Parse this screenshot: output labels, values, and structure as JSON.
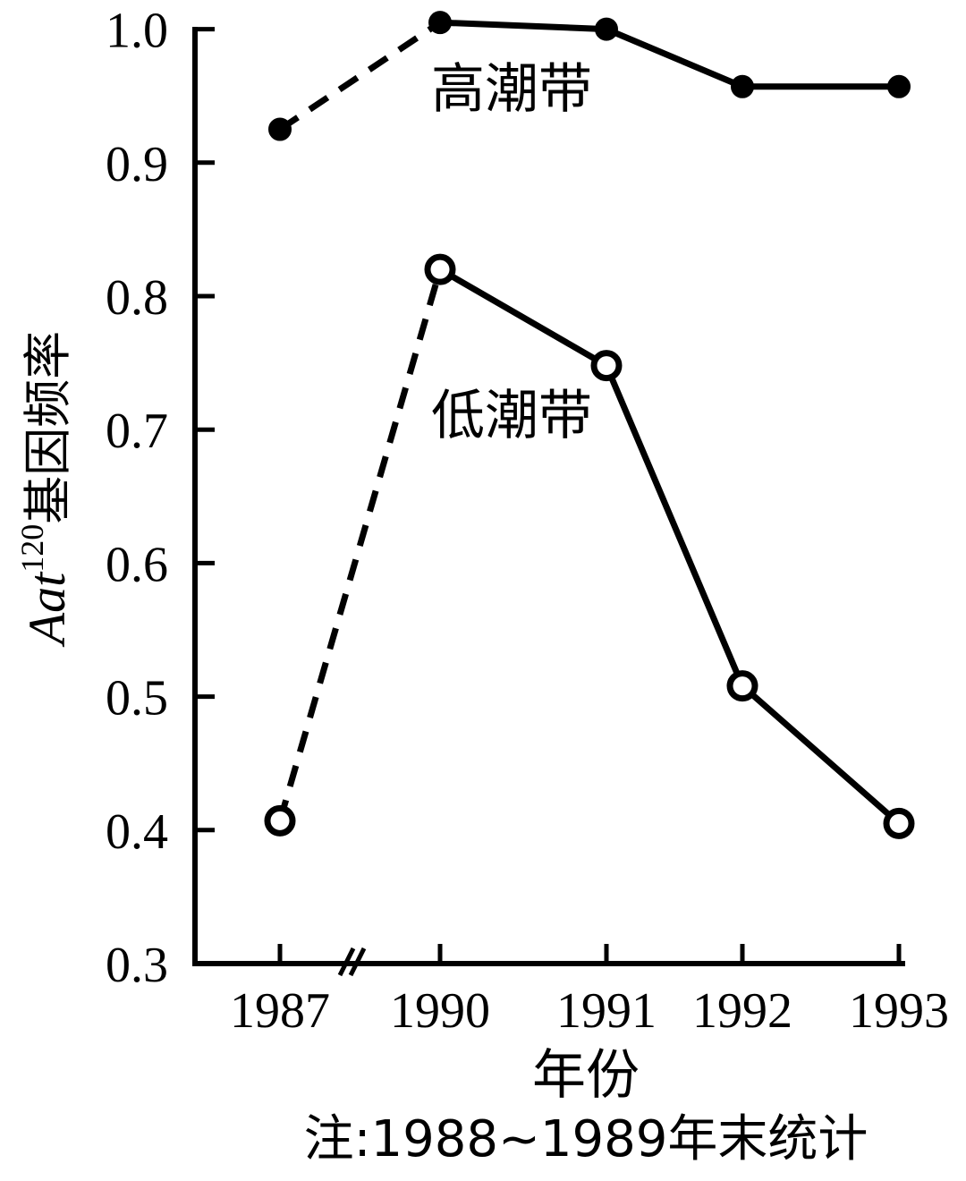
{
  "chart_data": {
    "type": "line",
    "categories": [
      "1987",
      "1990",
      "1991",
      "1992",
      "1993"
    ],
    "series": [
      {
        "name": "高潮带",
        "values": [
          0.925,
          1.005,
          1.0,
          0.957,
          0.957
        ],
        "marker": "filled"
      },
      {
        "name": "低潮带",
        "values": [
          0.407,
          0.82,
          0.748,
          0.508,
          0.405
        ],
        "marker": "open"
      }
    ],
    "dashed_segments": [
      [
        0,
        1
      ]
    ],
    "axis_break": "between 1987 and 1990",
    "ylim": [
      0.3,
      1.0
    ],
    "yticks": [
      "0.3",
      "0.4",
      "0.5",
      "0.6",
      "0.7",
      "0.8",
      "0.9",
      "1.0"
    ],
    "xlabel": "年份",
    "ylabel": {
      "italic": "Aat",
      "sup": "120",
      "text": "基因频率"
    },
    "note": "注:1988~1989年末统计",
    "grid": false
  }
}
